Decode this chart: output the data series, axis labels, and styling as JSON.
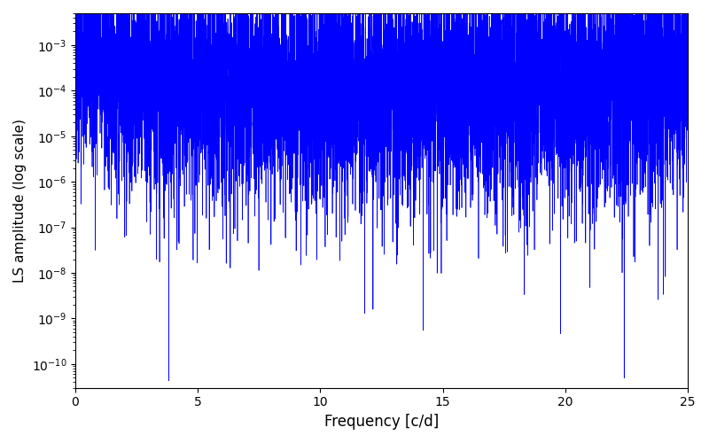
{
  "title": "",
  "xlabel": "Frequency [c/d]",
  "ylabel": "LS amplitude (log scale)",
  "xlim": [
    0,
    25
  ],
  "ylim": [
    3e-11,
    0.005
  ],
  "line_color": "blue",
  "xticks": [
    0,
    5,
    10,
    15,
    20,
    25
  ],
  "figsize": [
    8.0,
    5.0
  ],
  "dpi": 100,
  "seed": 42,
  "n_points": 8000,
  "freq_max": 25.0
}
